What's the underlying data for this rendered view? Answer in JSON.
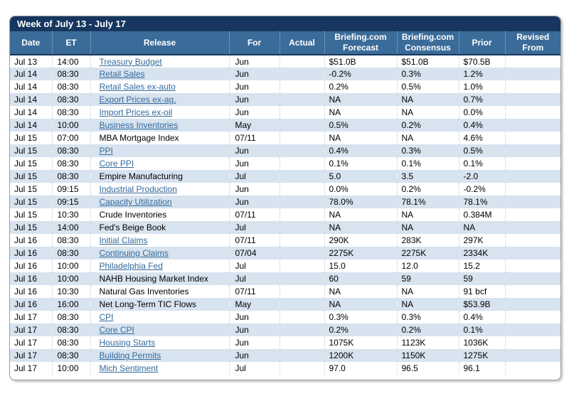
{
  "colors": {
    "titlebar": "#16365F",
    "header": "#3A6B99",
    "headerdiv": "#9DB4CA",
    "rowdiv": "#C3CEDA",
    "rowalt": "#D7E3EF",
    "link": "#34699B"
  },
  "table": {
    "title": "Week of July 13 - July 17",
    "columns": [
      {
        "key": "date",
        "label": "Date"
      },
      {
        "key": "et",
        "label": "ET"
      },
      {
        "key": "release",
        "label": "Release"
      },
      {
        "key": "for",
        "label": "For"
      },
      {
        "key": "actual",
        "label": "Actual"
      },
      {
        "key": "forecast",
        "label": "Briefing.com\nForecast"
      },
      {
        "key": "consensus",
        "label": "Briefing.com\nConsensus"
      },
      {
        "key": "prior",
        "label": "Prior"
      },
      {
        "key": "revised",
        "label": "Revised\nFrom"
      }
    ],
    "rows": [
      {
        "date": "Jul 13",
        "et": "14:00",
        "release": "Treasury Budget",
        "is_link": true,
        "for": "Jun",
        "actual": "",
        "forecast": "$51.0B",
        "consensus": "$51.0B",
        "prior": "$70.5B",
        "revised": ""
      },
      {
        "date": "Jul 14",
        "et": "08:30",
        "release": "Retail Sales",
        "is_link": true,
        "for": "Jun",
        "actual": "",
        "forecast": "-0.2%",
        "consensus": "0.3%",
        "prior": "1.2%",
        "revised": ""
      },
      {
        "date": "Jul 14",
        "et": "08:30",
        "release": "Retail Sales ex-auto",
        "is_link": true,
        "for": "Jun",
        "actual": "",
        "forecast": "0.2%",
        "consensus": "0.5%",
        "prior": "1.0%",
        "revised": ""
      },
      {
        "date": "Jul 14",
        "et": "08:30",
        "release": "Export Prices ex-ag.",
        "is_link": true,
        "for": "Jun",
        "actual": "",
        "forecast": "NA",
        "consensus": "NA",
        "prior": "0.7%",
        "revised": ""
      },
      {
        "date": "Jul 14",
        "et": "08:30",
        "release": "Import Prices ex-oil",
        "is_link": true,
        "for": "Jun",
        "actual": "",
        "forecast": "NA",
        "consensus": "NA",
        "prior": "0.0%",
        "revised": ""
      },
      {
        "date": "Jul 14",
        "et": "10:00",
        "release": "Business Inventories",
        "is_link": true,
        "for": "May",
        "actual": "",
        "forecast": "0.5%",
        "consensus": "0.2%",
        "prior": "0.4%",
        "revised": ""
      },
      {
        "date": "Jul 15",
        "et": "07:00",
        "release": "MBA Mortgage Index",
        "is_link": false,
        "for": "07/11",
        "actual": "",
        "forecast": "NA",
        "consensus": "NA",
        "prior": "4.6%",
        "revised": ""
      },
      {
        "date": "Jul 15",
        "et": "08:30",
        "release": "PPI",
        "is_link": true,
        "for": "Jun",
        "actual": "",
        "forecast": "0.4%",
        "consensus": "0.3%",
        "prior": "0.5%",
        "revised": ""
      },
      {
        "date": "Jul 15",
        "et": "08:30",
        "release": "Core PPI",
        "is_link": true,
        "for": "Jun",
        "actual": "",
        "forecast": "0.1%",
        "consensus": "0.1%",
        "prior": "0.1%",
        "revised": ""
      },
      {
        "date": "Jul 15",
        "et": "08:30",
        "release": "Empire Manufacturing",
        "is_link": false,
        "for": "Jul",
        "actual": "",
        "forecast": "5.0",
        "consensus": "3.5",
        "prior": "-2.0",
        "revised": ""
      },
      {
        "date": "Jul 15",
        "et": "09:15",
        "release": "Industrial Production",
        "is_link": true,
        "for": "Jun",
        "actual": "",
        "forecast": "0.0%",
        "consensus": "0.2%",
        "prior": "-0.2%",
        "revised": ""
      },
      {
        "date": "Jul 15",
        "et": "09:15",
        "release": "Capacity Utilization",
        "is_link": true,
        "for": "Jun",
        "actual": "",
        "forecast": "78.0%",
        "consensus": "78.1%",
        "prior": "78.1%",
        "revised": ""
      },
      {
        "date": "Jul 15",
        "et": "10:30",
        "release": "Crude Inventories",
        "is_link": false,
        "for": "07/11",
        "actual": "",
        "forecast": "NA",
        "consensus": "NA",
        "prior": "0.384M",
        "revised": ""
      },
      {
        "date": "Jul 15",
        "et": "14:00",
        "release": "Fed's Beige Book",
        "is_link": false,
        "for": "Jul",
        "actual": "",
        "forecast": "NA",
        "consensus": "NA",
        "prior": "NA",
        "revised": ""
      },
      {
        "date": "Jul 16",
        "et": "08:30",
        "release": "Initial Claims",
        "is_link": true,
        "for": "07/11",
        "actual": "",
        "forecast": "290K",
        "consensus": "283K",
        "prior": "297K",
        "revised": ""
      },
      {
        "date": "Jul 16",
        "et": "08:30",
        "release": "Continuing Claims",
        "is_link": true,
        "for": "07/04",
        "actual": "",
        "forecast": "2275K",
        "consensus": "2275K",
        "prior": "2334K",
        "revised": ""
      },
      {
        "date": "Jul 16",
        "et": "10:00",
        "release": "Philadelphia Fed",
        "is_link": true,
        "for": "Jul",
        "actual": "",
        "forecast": "15.0",
        "consensus": "12.0",
        "prior": "15.2",
        "revised": ""
      },
      {
        "date": "Jul 16",
        "et": "10:00",
        "release": "NAHB Housing Market Index",
        "is_link": false,
        "for": "Jul",
        "actual": "",
        "forecast": "60",
        "consensus": "59",
        "prior": "59",
        "revised": ""
      },
      {
        "date": "Jul 16",
        "et": "10:30",
        "release": "Natural Gas Inventories",
        "is_link": false,
        "for": "07/11",
        "actual": "",
        "forecast": "NA",
        "consensus": "NA",
        "prior": "91 bcf",
        "revised": ""
      },
      {
        "date": "Jul 16",
        "et": "16:00",
        "release": "Net Long-Term TIC Flows",
        "is_link": false,
        "for": "May",
        "actual": "",
        "forecast": "NA",
        "consensus": "NA",
        "prior": "$53.9B",
        "revised": ""
      },
      {
        "date": "Jul 17",
        "et": "08:30",
        "release": "CPI",
        "is_link": true,
        "for": "Jun",
        "actual": "",
        "forecast": "0.3%",
        "consensus": "0.3%",
        "prior": "0.4%",
        "revised": ""
      },
      {
        "date": "Jul 17",
        "et": "08:30",
        "release": "Core CPI",
        "is_link": true,
        "for": "Jun",
        "actual": "",
        "forecast": "0.2%",
        "consensus": "0.2%",
        "prior": "0.1%",
        "revised": ""
      },
      {
        "date": "Jul 17",
        "et": "08:30",
        "release": "Housing Starts",
        "is_link": true,
        "for": "Jun",
        "actual": "",
        "forecast": "1075K",
        "consensus": "1123K",
        "prior": "1036K",
        "revised": ""
      },
      {
        "date": "Jul 17",
        "et": "08:30",
        "release": "Building Permits",
        "is_link": true,
        "for": "Jun",
        "actual": "",
        "forecast": "1200K",
        "consensus": "1150K",
        "prior": "1275K",
        "revised": ""
      },
      {
        "date": "Jul 17",
        "et": "10:00",
        "release": "Mich Sentiment",
        "is_link": true,
        "for": "Jul",
        "actual": "",
        "forecast": "97.0",
        "consensus": "96.5",
        "prior": "96.1",
        "revised": ""
      }
    ]
  }
}
